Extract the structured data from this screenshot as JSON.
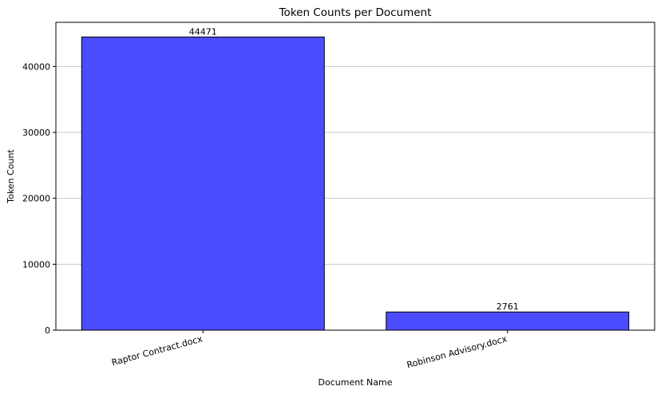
{
  "chart_data": {
    "type": "bar",
    "title": "Token Counts per Document",
    "xlabel": "Document Name",
    "ylabel": "Token Count",
    "categories": [
      "Raptor Contract.docx",
      "Robinson Advisory.docx"
    ],
    "values": [
      44471,
      2761
    ],
    "value_labels": [
      "44471",
      "2761"
    ],
    "ylim": [
      0,
      46694.55
    ],
    "yticks": [
      0,
      10000,
      20000,
      30000,
      40000
    ],
    "ytick_labels": [
      "0",
      "10000",
      "20000",
      "30000",
      "40000"
    ],
    "grid": "y",
    "colors": {
      "bar_fill": "#4c4cff",
      "bar_edge": "#000000",
      "grid": "#c8c8c8"
    }
  }
}
